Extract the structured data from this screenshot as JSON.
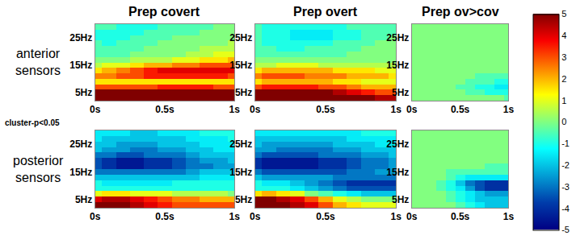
{
  "chart_data": {
    "type": "heatmap",
    "columns": [
      "Prep covert",
      "Prep overt",
      "Prep ov>cov"
    ],
    "rows": [
      "anterior sensors",
      "posterior sensors"
    ],
    "annotation": "cluster-p<0.05",
    "color": "Jet",
    "x": [
      0,
      0.1,
      0.2,
      0.3,
      0.4,
      0.5,
      0.6,
      0.7,
      0.8,
      0.9,
      1
    ],
    "y": [
      3,
      5,
      7,
      9,
      11,
      13,
      15,
      17,
      19,
      21,
      23,
      25,
      27,
      29
    ],
    "xlim": [
      0,
      1
    ],
    "ylim": [
      2,
      30
    ],
    "xticks": [
      {
        "value": 0,
        "label": "0s"
      },
      {
        "value": 0.5,
        "label": "0.5s"
      },
      {
        "value": 1,
        "label": "1s"
      }
    ],
    "yticks": [
      {
        "value": 5,
        "label": "5Hz"
      },
      {
        "value": 15,
        "label": "15Hz"
      },
      {
        "value": 25,
        "label": "25Hz"
      }
    ],
    "zlim": [
      -5,
      5
    ],
    "zticks": [
      -5,
      -4,
      -3,
      -2,
      -1,
      0,
      1,
      2,
      3,
      4,
      5
    ],
    "cells": [
      [
        [
          [
            5,
            5,
            5,
            5,
            5,
            5,
            5,
            5,
            5,
            5,
            5
          ],
          [
            5,
            5,
            5,
            5,
            5,
            5,
            5,
            5,
            5,
            5,
            5
          ],
          [
            3,
            3,
            3,
            3,
            3,
            3.5,
            3.5,
            3.5,
            3.5,
            3,
            3
          ],
          [
            1.5,
            1.5,
            1.5,
            1.5,
            1.5,
            1.5,
            1.5,
            1.5,
            1.5,
            1.5,
            1.5
          ],
          [
            2.5,
            2.5,
            3,
            3,
            3.5,
            3.5,
            3.5,
            3.5,
            3.5,
            3.5,
            3
          ],
          [
            1.5,
            2,
            2.5,
            3,
            3.5,
            4,
            4,
            4,
            4,
            4,
            4
          ],
          [
            0.5,
            1,
            1,
            1.5,
            2,
            2,
            2.5,
            2.5,
            3,
            3,
            3
          ],
          [
            0,
            0,
            0,
            0.5,
            0.5,
            0.5,
            1,
            1,
            1.5,
            1.5,
            2
          ],
          [
            -0.5,
            -0.5,
            -0.5,
            0,
            0,
            0,
            0,
            0.5,
            0.5,
            1,
            1
          ],
          [
            -0.5,
            -0.5,
            -0.5,
            -0.5,
            0,
            0,
            0,
            0,
            0.5,
            0.5,
            0.5
          ],
          [
            -0.5,
            -1,
            -0.5,
            -0.5,
            -0.5,
            0,
            0,
            0,
            0,
            0,
            0.5
          ],
          [
            -1,
            -1,
            -1,
            -0.5,
            -0.5,
            -0.5,
            0,
            0,
            0,
            0,
            0
          ],
          [
            -1,
            -1,
            -1,
            -1,
            -0.5,
            -0.5,
            -0.5,
            -0.5,
            0,
            0,
            0
          ],
          [
            -0.5,
            -0.5,
            -1,
            -1,
            -1,
            -0.5,
            -0.5,
            -0.5,
            -0.5,
            0,
            0
          ]
        ],
        [
          [
            5,
            5,
            5,
            5,
            5,
            5,
            5,
            5,
            5,
            4.5,
            4.5
          ],
          [
            5,
            5,
            5,
            5,
            5,
            5,
            4.5,
            4,
            3.5,
            3,
            3
          ],
          [
            3,
            3.5,
            3.5,
            3.5,
            3.5,
            3,
            3,
            2.5,
            2,
            2,
            2
          ],
          [
            1.5,
            2,
            2,
            2,
            2,
            2,
            1.5,
            1.5,
            1,
            1,
            1
          ],
          [
            2.5,
            3,
            3,
            3,
            2.5,
            2.5,
            2.5,
            2,
            2,
            2,
            1.5
          ],
          [
            1.5,
            2,
            2,
            2,
            2,
            2,
            1.5,
            1.5,
            1.5,
            1,
            1
          ],
          [
            0.5,
            0.5,
            1,
            1,
            1,
            0.5,
            0.5,
            0.5,
            0.5,
            0.5,
            0.5
          ],
          [
            0,
            0,
            0,
            0,
            0,
            0,
            0,
            0,
            0,
            0,
            0
          ],
          [
            -0.5,
            -0.5,
            -0.5,
            -0.5,
            -0.5,
            -0.5,
            -0.5,
            0,
            0,
            0,
            0
          ],
          [
            -0.5,
            -0.5,
            -1,
            -1,
            -0.5,
            -0.5,
            -0.5,
            -0.5,
            0,
            0,
            0
          ],
          [
            -0.5,
            -1,
            -1,
            -1,
            -1,
            -1,
            -0.5,
            -0.5,
            -0.5,
            0,
            0
          ],
          [
            -0.5,
            -1,
            -1,
            -1.5,
            -1.5,
            -1.5,
            -1,
            -1,
            -0.5,
            -0.5,
            0
          ],
          [
            -0.5,
            -1,
            -1,
            -1.5,
            -1.5,
            -1.5,
            -1,
            -1,
            -0.5,
            -0.5,
            -0.5
          ],
          [
            -0.5,
            -1,
            -1,
            -1,
            -1,
            -1,
            -1,
            -0.5,
            -0.5,
            -0.5,
            -0.5
          ]
        ],
        [
          [
            0,
            0,
            0,
            0,
            0,
            0,
            0,
            0,
            0,
            0,
            -0.5
          ],
          [
            0,
            0,
            0,
            0,
            0,
            0,
            -0.5,
            -0.5,
            -1,
            -1,
            -1
          ],
          [
            0,
            0,
            0,
            0,
            0,
            -0.5,
            -0.5,
            -1,
            -1,
            -1.5,
            -1.5
          ],
          [
            0,
            0,
            0,
            0,
            0,
            0,
            -0.5,
            -0.5,
            -0.5,
            -1,
            -1
          ],
          [
            0,
            0,
            0,
            0,
            0,
            0,
            0,
            -0.5,
            -0.5,
            -0.5,
            -0.5
          ],
          [
            0,
            0,
            0,
            0,
            0,
            0,
            0,
            0,
            0,
            0,
            0
          ],
          [
            0,
            0,
            0,
            0,
            0,
            0,
            0,
            0,
            0,
            0,
            0
          ],
          [
            0,
            0,
            0,
            0,
            0,
            0,
            0,
            0,
            0,
            0,
            0
          ],
          [
            0,
            0,
            0,
            0,
            0,
            0,
            0,
            0,
            0,
            0,
            0
          ],
          [
            0,
            0,
            0,
            0,
            0,
            0,
            0,
            0,
            0,
            0,
            0
          ],
          [
            0,
            0,
            0,
            0,
            0,
            0,
            0,
            0,
            0,
            0,
            0
          ],
          [
            0,
            0,
            0,
            0,
            0,
            0,
            0,
            0,
            0,
            0,
            0
          ],
          [
            0,
            0,
            0,
            0,
            0,
            0,
            0,
            0,
            0,
            0,
            0
          ],
          [
            0,
            0,
            0,
            0,
            0,
            0,
            0,
            0,
            0,
            0,
            0
          ]
        ]
      ],
      [
        [
          [
            5,
            5,
            5,
            4.5,
            4,
            3.5,
            3,
            3,
            3,
            3,
            3
          ],
          [
            4,
            4.5,
            4.5,
            4,
            3.5,
            3,
            2.5,
            2.5,
            2,
            2,
            2
          ],
          [
            1,
            1.5,
            1.5,
            1,
            1,
            1,
            0.5,
            0.5,
            0.5,
            0.5,
            0
          ],
          [
            -1,
            -1,
            -1,
            -1,
            -1,
            -1,
            -1,
            -1,
            -1,
            -1,
            -1
          ],
          [
            -1,
            -1.5,
            -1.5,
            -1.5,
            -1.5,
            -1.5,
            -1,
            -1,
            -1,
            -1,
            -1
          ],
          [
            -2,
            -2,
            -2,
            -2,
            -2,
            -2,
            -2,
            -2,
            -1.5,
            -1.5,
            -1.5
          ],
          [
            -3,
            -3,
            -3,
            -3,
            -3,
            -3,
            -3,
            -2.5,
            -2,
            -2,
            -2
          ],
          [
            -3.5,
            -4,
            -4.5,
            -4.5,
            -4,
            -4,
            -3.5,
            -3,
            -3,
            -2.5,
            -2.5
          ],
          [
            -3.5,
            -4,
            -4.5,
            -4.5,
            -4,
            -4,
            -3.5,
            -3,
            -2.5,
            -2.5,
            -2
          ],
          [
            -3,
            -3,
            -3.5,
            -3.5,
            -3,
            -3,
            -3,
            -2.5,
            -2,
            -2,
            -2
          ],
          [
            -2,
            -2.5,
            -2.5,
            -3,
            -3,
            -2.5,
            -2.5,
            -2,
            -2,
            -1.5,
            -1.5
          ],
          [
            -2,
            -2,
            -2.5,
            -2.5,
            -2.5,
            -2,
            -2,
            -2,
            -1.5,
            -1.5,
            -1.5
          ],
          [
            -1.5,
            -2,
            -2,
            -2,
            -2,
            -2,
            -2,
            -1.5,
            -1.5,
            -1.5,
            -1
          ],
          [
            -1.5,
            -1.5,
            -1.5,
            -2,
            -2,
            -1.5,
            -1.5,
            -1.5,
            -1,
            -1,
            -1
          ]
        ],
        [
          [
            5,
            5,
            5,
            4.5,
            4,
            3,
            2,
            1.5,
            1,
            1,
            1
          ],
          [
            5,
            5,
            4.5,
            4,
            3,
            2,
            1,
            0.5,
            0,
            0,
            0
          ],
          [
            1.5,
            2,
            1.5,
            1,
            0,
            -0.5,
            -1,
            -1.5,
            -2,
            -2,
            -2
          ],
          [
            -1,
            -1,
            -1,
            -1.5,
            -2,
            -2.5,
            -3,
            -3.5,
            -3.5,
            -3.5,
            -3.5
          ],
          [
            -1,
            -1.5,
            -1.5,
            -2,
            -2.5,
            -3,
            -3.5,
            -4,
            -4,
            -4,
            -4
          ],
          [
            -2,
            -2.5,
            -2.5,
            -2.5,
            -2.5,
            -2.5,
            -3,
            -3,
            -3,
            -3,
            -3
          ],
          [
            -3,
            -3.5,
            -3.5,
            -3.5,
            -3.5,
            -3.5,
            -3.5,
            -3,
            -3,
            -2.5,
            -2.5
          ],
          [
            -4,
            -4.5,
            -4.5,
            -4.5,
            -4.5,
            -4,
            -4,
            -3.5,
            -3,
            -3,
            -2.5
          ],
          [
            -4,
            -4.5,
            -4.5,
            -4.5,
            -4.5,
            -4,
            -4,
            -3.5,
            -3,
            -3,
            -2.5
          ],
          [
            -3,
            -3.5,
            -3.5,
            -3.5,
            -3.5,
            -3,
            -3,
            -3,
            -2.5,
            -2.5,
            -2
          ],
          [
            -2.5,
            -2.5,
            -3,
            -3,
            -3,
            -3,
            -2.5,
            -2.5,
            -2,
            -2,
            -2
          ],
          [
            -2,
            -2.5,
            -2.5,
            -2.5,
            -2.5,
            -2.5,
            -2,
            -2,
            -2,
            -1.5,
            -1.5
          ],
          [
            -2,
            -2,
            -2,
            -2,
            -2,
            -2,
            -2,
            -1.5,
            -1.5,
            -1.5,
            -1.5
          ],
          [
            -1.5,
            -1.5,
            -1.5,
            -1.5,
            -1.5,
            -1.5,
            -1.5,
            -1.5,
            -1,
            -1,
            -1
          ]
        ],
        [
          [
            0,
            0,
            0,
            0,
            0,
            -0.5,
            -1,
            -1.5,
            -2,
            -2,
            -2
          ],
          [
            0,
            0,
            0,
            0,
            -0.5,
            -1,
            -1.5,
            -2,
            -2,
            -2,
            -2
          ],
          [
            0,
            0,
            0,
            0,
            -0.5,
            -1,
            -1.5,
            -2,
            -2.5,
            -2.5,
            -2.5
          ],
          [
            0,
            0,
            0,
            -0.5,
            -1,
            -1.5,
            -2.5,
            -3.5,
            -4,
            -4,
            -4
          ],
          [
            0,
            0,
            0,
            -0.5,
            -1,
            -2,
            -3,
            -3.5,
            -4,
            -4,
            -4
          ],
          [
            0,
            0,
            0,
            0,
            -0.5,
            -1,
            -1.5,
            -1.5,
            -1.5,
            -1.5,
            -1.5
          ],
          [
            0,
            0,
            0,
            0,
            -0.5,
            -0.5,
            -0.5,
            -0.5,
            -0.5,
            -0.5,
            -0.5
          ],
          [
            0,
            0,
            0,
            0,
            0,
            0,
            0,
            0,
            -0.5,
            -0.5,
            -0.5
          ],
          [
            0,
            0,
            0,
            0,
            0,
            0,
            0,
            0,
            0,
            0,
            0
          ],
          [
            0,
            0,
            0,
            0,
            0,
            0,
            0,
            0,
            0,
            0,
            0
          ],
          [
            0,
            0,
            0,
            0,
            0,
            0,
            0,
            0,
            0,
            0,
            0
          ],
          [
            0,
            0,
            0,
            0,
            0,
            0,
            0,
            0,
            0,
            0,
            0
          ],
          [
            0,
            0,
            0,
            0,
            0,
            0,
            0,
            0,
            0,
            0,
            0
          ],
          [
            0,
            0,
            0,
            0,
            0,
            0,
            0,
            0,
            0,
            0,
            0
          ]
        ]
      ]
    ]
  }
}
